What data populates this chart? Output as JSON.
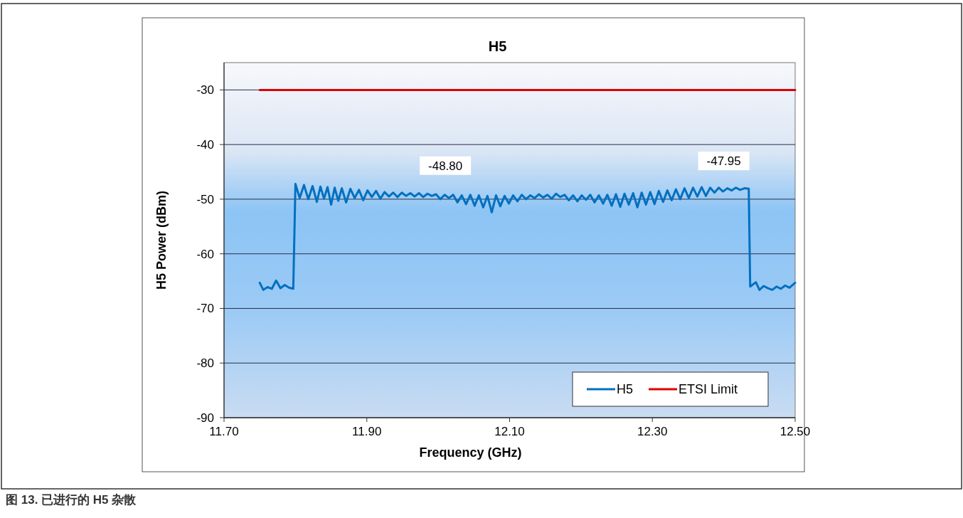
{
  "chart_data": {
    "type": "line",
    "title": "H5",
    "xlabel": "Frequency (GHz)",
    "ylabel": "H5 Power (dBm)",
    "xlim": [
      11.7,
      12.5
    ],
    "ylim": [
      -90,
      -25
    ],
    "xticks": [
      {
        "value": 11.7,
        "label": "11.70"
      },
      {
        "value": 11.9,
        "label": "11.90"
      },
      {
        "value": 12.1,
        "label": "12.10"
      },
      {
        "value": 12.3,
        "label": "12.30"
      },
      {
        "value": 12.5,
        "label": "12.50"
      }
    ],
    "yticks": [
      -30,
      -40,
      -50,
      -60,
      -70,
      -80,
      -90
    ],
    "grid": "y",
    "legend": "bottom right",
    "marker": "none",
    "line_style": "solid",
    "series": [
      {
        "name": "H5",
        "color": "#0070c0",
        "x": [
          11.75,
          11.755,
          11.761,
          11.767,
          11.773,
          11.779,
          11.785,
          11.791,
          11.797,
          11.8,
          11.806,
          11.812,
          11.818,
          11.824,
          11.83,
          11.835,
          11.84,
          11.845,
          11.85,
          11.855,
          11.86,
          11.865,
          11.871,
          11.877,
          11.883,
          11.889,
          11.895,
          11.901,
          11.907,
          11.913,
          11.919,
          11.925,
          11.931,
          11.937,
          11.943,
          11.949,
          11.955,
          11.961,
          11.967,
          11.973,
          11.979,
          11.985,
          11.991,
          11.997,
          12.003,
          12.009,
          12.015,
          12.021,
          12.027,
          12.033,
          12.039,
          12.045,
          12.051,
          12.057,
          12.063,
          12.069,
          12.075,
          12.081,
          12.087,
          12.093,
          12.099,
          12.105,
          12.111,
          12.117,
          12.123,
          12.129,
          12.135,
          12.141,
          12.147,
          12.153,
          12.159,
          12.165,
          12.171,
          12.177,
          12.183,
          12.189,
          12.195,
          12.201,
          12.207,
          12.213,
          12.219,
          12.225,
          12.231,
          12.237,
          12.243,
          12.249,
          12.255,
          12.261,
          12.267,
          12.273,
          12.279,
          12.285,
          12.291,
          12.297,
          12.303,
          12.309,
          12.315,
          12.321,
          12.327,
          12.333,
          12.339,
          12.345,
          12.351,
          12.357,
          12.363,
          12.369,
          12.375,
          12.381,
          12.387,
          12.393,
          12.399,
          12.405,
          12.411,
          12.417,
          12.423,
          12.429,
          12.435,
          12.437,
          12.445,
          12.45,
          12.456,
          12.462,
          12.468,
          12.474,
          12.48,
          12.486,
          12.492,
          12.5
        ],
        "values": [
          -65.3,
          -66.6,
          -66.1,
          -66.4,
          -64.9,
          -66.3,
          -65.7,
          -66.2,
          -66.4,
          -47.2,
          -49.8,
          -47.4,
          -50.0,
          -47.6,
          -50.5,
          -47.7,
          -49.9,
          -47.8,
          -51.0,
          -47.9,
          -50.3,
          -48.0,
          -50.6,
          -48.1,
          -49.8,
          -48.3,
          -50.2,
          -48.4,
          -49.6,
          -48.5,
          -49.9,
          -48.7,
          -49.5,
          -48.8,
          -49.6,
          -48.8,
          -49.4,
          -48.9,
          -49.5,
          -48.9,
          -49.6,
          -49.0,
          -49.4,
          -49.1,
          -50.0,
          -49.2,
          -49.8,
          -49.2,
          -50.6,
          -49.3,
          -50.9,
          -49.2,
          -51.2,
          -49.3,
          -51.5,
          -49.4,
          -52.4,
          -49.3,
          -51.3,
          -49.4,
          -50.8,
          -49.3,
          -50.4,
          -49.2,
          -50.0,
          -49.3,
          -49.8,
          -49.1,
          -49.7,
          -49.2,
          -49.9,
          -49.0,
          -49.6,
          -49.2,
          -50.2,
          -49.3,
          -50.4,
          -49.3,
          -50.1,
          -49.2,
          -50.6,
          -49.3,
          -50.8,
          -49.2,
          -51.2,
          -49.1,
          -51.4,
          -49.0,
          -51.0,
          -48.9,
          -51.5,
          -48.8,
          -51.0,
          -48.7,
          -50.9,
          -48.5,
          -50.5,
          -48.4,
          -50.2,
          -48.2,
          -50.0,
          -48.0,
          -49.8,
          -47.9,
          -49.5,
          -47.8,
          -49.4,
          -47.9,
          -48.8,
          -47.9,
          -48.6,
          -48.0,
          -48.4,
          -47.9,
          -48.3,
          -48.0,
          -48.1,
          -66.0,
          -65.2,
          -66.6,
          -65.9,
          -66.3,
          -66.6,
          -66.0,
          -66.4,
          -65.8,
          -66.2,
          -65.3
        ]
      },
      {
        "name": "ETSI Limit",
        "color": "#e00000",
        "x": [
          11.75,
          12.5
        ],
        "values": [
          -30,
          -30
        ]
      }
    ],
    "annotations": [
      {
        "text": "-48.80",
        "x": 12.01,
        "y": -48.8
      },
      {
        "text": "-47.95",
        "x": 12.4,
        "y": -47.95
      },
      "图 13. 已进行的 H5 杂散"
    ]
  }
}
